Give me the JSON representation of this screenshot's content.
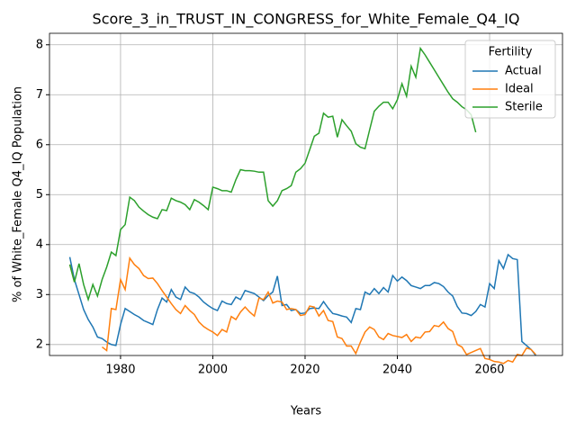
{
  "chart_data": {
    "type": "line",
    "title": "Score_3_in_TRUST_IN_CONGRESS_for_White_Female_Q4_IQ",
    "x_label": "Years",
    "y_label": "% of White_Female Q4_IQ Population",
    "legend_title": "Fertility",
    "legend_loc": "upper right",
    "grid": true,
    "x": [
      1969,
      1970,
      1971,
      1972,
      1973,
      1974,
      1975,
      1976,
      1977,
      1978,
      1979,
      1980,
      1981,
      1982,
      1983,
      1984,
      1985,
      1986,
      1987,
      1988,
      1989,
      1990,
      1991,
      1992,
      1993,
      1994,
      1995,
      1996,
      1997,
      1998,
      1999,
      2000,
      2001,
      2002,
      2003,
      2004,
      2005,
      2006,
      2007,
      2008,
      2009,
      2010,
      2011,
      2012,
      2013,
      2014,
      2015,
      2016,
      2017,
      2018,
      2019,
      2020,
      2021,
      2022,
      2023,
      2024,
      2025,
      2026,
      2027,
      2028,
      2029,
      2030,
      2031,
      2032,
      2033,
      2034,
      2035,
      2036,
      2037,
      2038,
      2039,
      2040,
      2041,
      2042,
      2043,
      2044,
      2045,
      2046,
      2047,
      2048,
      2049,
      2050,
      2051,
      2052,
      2053,
      2054,
      2055,
      2056,
      2057,
      2058,
      2059,
      2060,
      2061,
      2062,
      2063,
      2064,
      2065,
      2066,
      2067,
      2068,
      2069,
      2070
    ],
    "xlim": [
      1964.6,
      2075.8
    ],
    "xticks": [
      1980,
      2000,
      2020,
      2040,
      2060
    ],
    "ylim": [
      1.78,
      8.23
    ],
    "yticks": [
      2,
      3,
      4,
      5,
      6,
      7,
      8
    ],
    "series": [
      {
        "name": "Actual",
        "color": "#1f77b4",
        "values": [
          3.75,
          3.3,
          3.0,
          2.7,
          2.5,
          2.35,
          2.15,
          2.12,
          2.05,
          2.0,
          1.98,
          2.4,
          2.72,
          2.66,
          2.6,
          2.55,
          2.48,
          2.44,
          2.4,
          2.7,
          2.93,
          2.85,
          3.1,
          2.95,
          2.9,
          3.15,
          3.05,
          3.02,
          2.95,
          2.85,
          2.78,
          2.72,
          2.68,
          2.87,
          2.82,
          2.8,
          2.95,
          2.9,
          3.08,
          3.05,
          3.02,
          2.95,
          2.88,
          2.98,
          3.05,
          3.37,
          2.78,
          2.8,
          2.68,
          2.7,
          2.62,
          2.63,
          2.72,
          2.73,
          2.72,
          2.86,
          2.73,
          2.62,
          2.6,
          2.57,
          2.55,
          2.44,
          2.72,
          2.7,
          3.05,
          3.0,
          3.12,
          3.02,
          3.14,
          3.05,
          3.38,
          3.27,
          3.35,
          3.28,
          3.18,
          3.15,
          3.12,
          3.18,
          3.18,
          3.24,
          3.22,
          3.16,
          3.05,
          2.97,
          2.76,
          2.63,
          2.62,
          2.58,
          2.66,
          2.8,
          2.75,
          3.22,
          3.12,
          3.68,
          3.52,
          3.8,
          3.72,
          3.7,
          2.06,
          1.98,
          1.9,
          1.78
        ]
      },
      {
        "name": "Ideal",
        "color": "#ff7f0e",
        "values": [
          3.6,
          3.25,
          null,
          null,
          null,
          null,
          null,
          1.95,
          1.88,
          2.72,
          2.7,
          3.3,
          3.1,
          3.73,
          3.6,
          3.52,
          3.38,
          3.32,
          3.33,
          3.22,
          3.08,
          2.95,
          2.82,
          2.7,
          2.62,
          2.78,
          2.68,
          2.6,
          2.45,
          2.36,
          2.3,
          2.25,
          2.18,
          2.3,
          2.25,
          2.56,
          2.5,
          2.65,
          2.75,
          2.65,
          2.57,
          2.93,
          2.9,
          3.05,
          2.83,
          2.87,
          2.85,
          2.7,
          2.72,
          2.7,
          2.58,
          2.6,
          2.77,
          2.75,
          2.57,
          2.68,
          2.48,
          2.46,
          2.15,
          2.12,
          1.97,
          1.97,
          1.82,
          2.05,
          2.25,
          2.35,
          2.3,
          2.15,
          2.1,
          2.22,
          2.18,
          2.16,
          2.14,
          2.2,
          2.06,
          2.15,
          2.13,
          2.25,
          2.26,
          2.38,
          2.36,
          2.45,
          2.32,
          2.26,
          2.0,
          1.95,
          1.8,
          1.84,
          1.88,
          1.92,
          1.72,
          1.7,
          1.66,
          1.65,
          1.62,
          1.68,
          1.65,
          1.8,
          1.78,
          1.93,
          1.9,
          1.8
        ]
      },
      {
        "name": "Sterile",
        "color": "#2ca02c",
        "values": [
          3.6,
          3.25,
          3.62,
          3.2,
          2.9,
          3.2,
          2.97,
          3.3,
          3.55,
          3.85,
          3.78,
          4.3,
          4.4,
          4.95,
          4.88,
          4.75,
          4.67,
          4.6,
          4.55,
          4.52,
          4.7,
          4.68,
          4.93,
          4.88,
          4.85,
          4.8,
          4.7,
          4.9,
          4.85,
          4.78,
          4.7,
          5.15,
          5.12,
          5.08,
          5.08,
          5.05,
          5.3,
          5.5,
          5.48,
          5.48,
          5.47,
          5.45,
          5.45,
          4.88,
          4.77,
          4.88,
          5.08,
          5.12,
          5.18,
          5.45,
          5.52,
          5.63,
          5.9,
          6.17,
          6.23,
          6.63,
          6.55,
          6.57,
          6.15,
          6.5,
          6.38,
          6.27,
          6.02,
          5.95,
          5.92,
          6.3,
          6.67,
          6.77,
          6.85,
          6.85,
          6.72,
          6.9,
          7.22,
          6.97,
          7.57,
          7.35,
          7.93,
          7.8,
          7.65,
          7.5,
          7.35,
          7.2,
          7.05,
          6.92,
          6.85,
          6.76,
          6.7,
          6.6,
          6.25,
          null,
          null,
          null,
          null,
          null,
          null,
          null,
          null,
          null,
          null,
          null,
          null,
          null
        ]
      }
    ]
  }
}
